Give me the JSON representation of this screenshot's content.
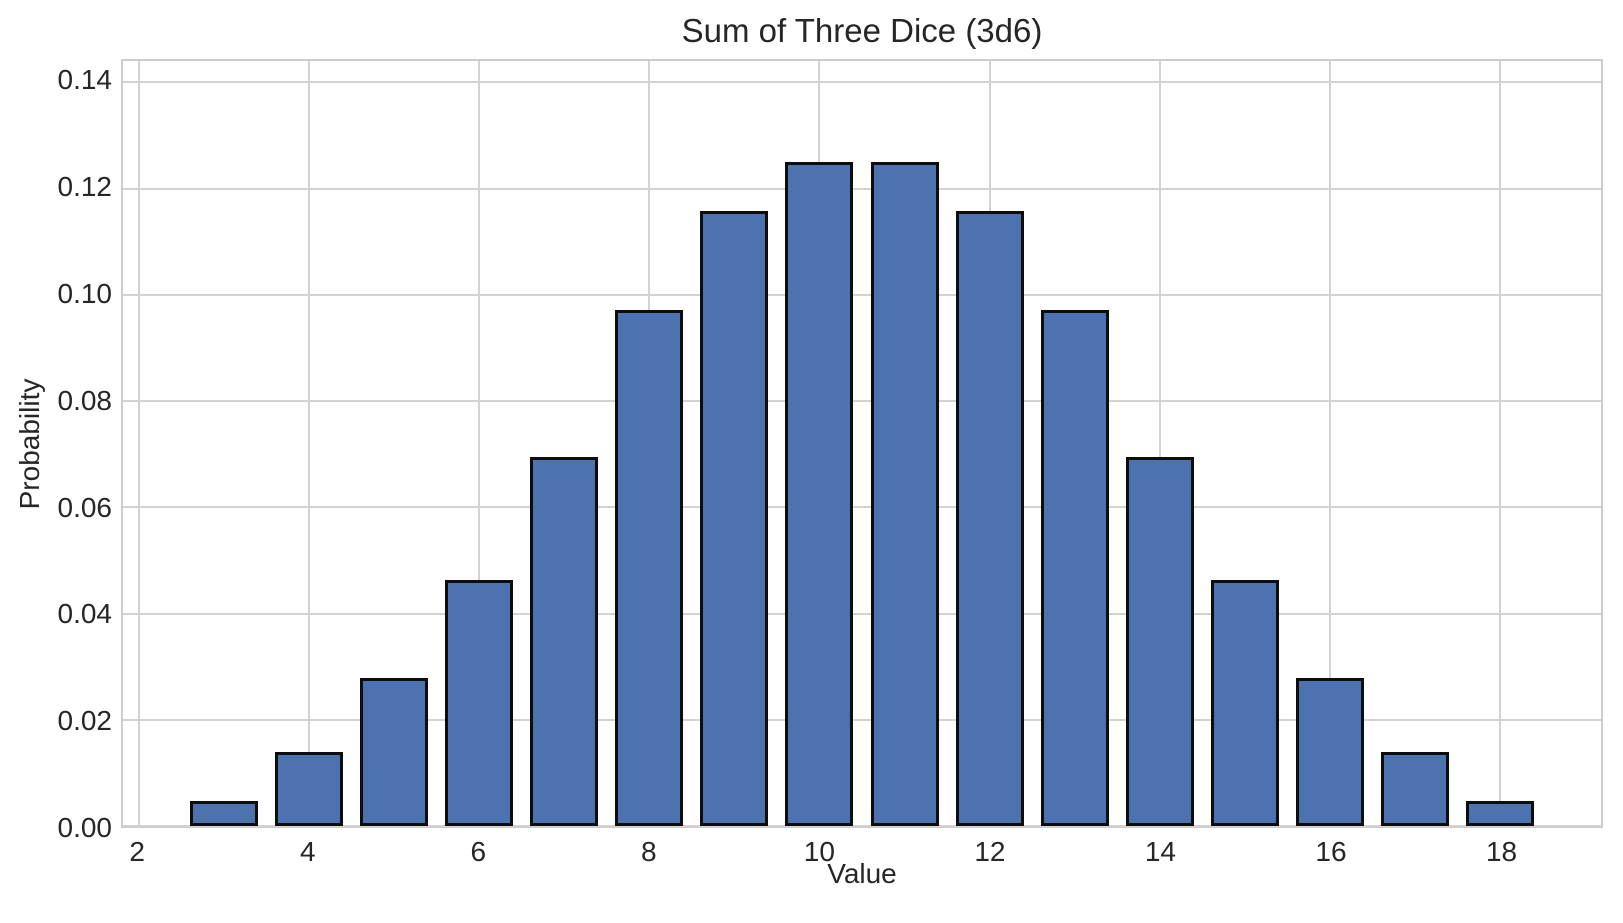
{
  "chart_data": {
    "type": "bar",
    "title": "Sum of Three Dice (3d6)",
    "xlabel": "Value",
    "ylabel": "Probability",
    "x": [
      3,
      4,
      5,
      6,
      7,
      8,
      9,
      10,
      11,
      12,
      13,
      14,
      15,
      16,
      17,
      18
    ],
    "values": [
      0.00463,
      0.01389,
      0.02778,
      0.0463,
      0.06944,
      0.09722,
      0.11574,
      0.125,
      0.125,
      0.11574,
      0.09722,
      0.06944,
      0.0463,
      0.02778,
      0.01389,
      0.00463
    ],
    "bar_width": 0.8,
    "xlim": [
      1.81,
      19.19
    ],
    "ylim": [
      0,
      0.144
    ],
    "xticks": [
      2,
      4,
      6,
      8,
      10,
      12,
      14,
      16,
      18
    ],
    "xtick_labels": [
      "2",
      "4",
      "6",
      "8",
      "10",
      "12",
      "14",
      "16",
      "18"
    ],
    "yticks": [
      0,
      0.02,
      0.04,
      0.06,
      0.08,
      0.1,
      0.12,
      0.14
    ],
    "ytick_labels": [
      "0.00",
      "0.02",
      "0.04",
      "0.06",
      "0.08",
      "0.10",
      "0.12",
      "0.14"
    ],
    "grid": true,
    "legend_position": "none",
    "colors": {
      "bar_fill": "#4C72B0",
      "bar_edge": "#0d0d0d",
      "grid": "#d2d2d2",
      "spine": "#cccccc",
      "text": "#262626",
      "background": "#ffffff"
    }
  }
}
